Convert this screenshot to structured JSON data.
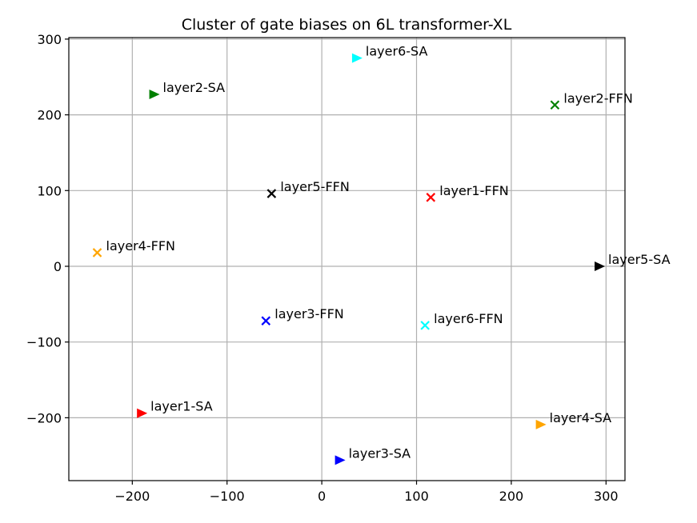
{
  "chart_data": {
    "type": "scatter",
    "title": "Cluster of gate biases on 6L transformer-XL",
    "xlabel": "",
    "ylabel": "",
    "xlim": [
      -267,
      320
    ],
    "ylim": [
      -283,
      302
    ],
    "grid": true,
    "xticks": [
      -200,
      -100,
      0,
      100,
      200,
      300
    ],
    "yticks": [
      -200,
      -100,
      0,
      100,
      200,
      300
    ],
    "xtick_labels": [
      "−200",
      "−100",
      "0",
      "100",
      "200",
      "300"
    ],
    "ytick_labels": [
      "−200",
      "−100",
      "0",
      "100",
      "200",
      "300"
    ],
    "points": [
      {
        "label": "layer1-SA",
        "x": -190,
        "y": -194,
        "marker": "triangle-right",
        "color": "#ff0000"
      },
      {
        "label": "layer1-FFN",
        "x": 115,
        "y": 91,
        "marker": "x",
        "color": "#ff0000"
      },
      {
        "label": "layer2-SA",
        "x": -177,
        "y": 227,
        "marker": "triangle-right",
        "color": "#008000"
      },
      {
        "label": "layer2-FFN",
        "x": 246,
        "y": 213,
        "marker": "x",
        "color": "#008000"
      },
      {
        "label": "layer3-SA",
        "x": 19,
        "y": -256,
        "marker": "triangle-right",
        "color": "#0000ff"
      },
      {
        "label": "layer3-FFN",
        "x": -59,
        "y": -72,
        "marker": "x",
        "color": "#0000ff"
      },
      {
        "label": "layer4-SA",
        "x": 231,
        "y": -209,
        "marker": "triangle-right",
        "color": "#ffa500"
      },
      {
        "label": "layer4-FFN",
        "x": -237,
        "y": 18,
        "marker": "x",
        "color": "#ffa500"
      },
      {
        "label": "layer5-SA",
        "x": 293,
        "y": 0,
        "marker": "triangle-right",
        "color": "#000000"
      },
      {
        "label": "layer5-FFN",
        "x": -53,
        "y": 96,
        "marker": "x",
        "color": "#000000"
      },
      {
        "label": "layer6-SA",
        "x": 37,
        "y": 275,
        "marker": "triangle-right",
        "color": "#00ffff"
      },
      {
        "label": "layer6-FFN",
        "x": 109,
        "y": -78,
        "marker": "x",
        "color": "#00ffff"
      }
    ]
  }
}
